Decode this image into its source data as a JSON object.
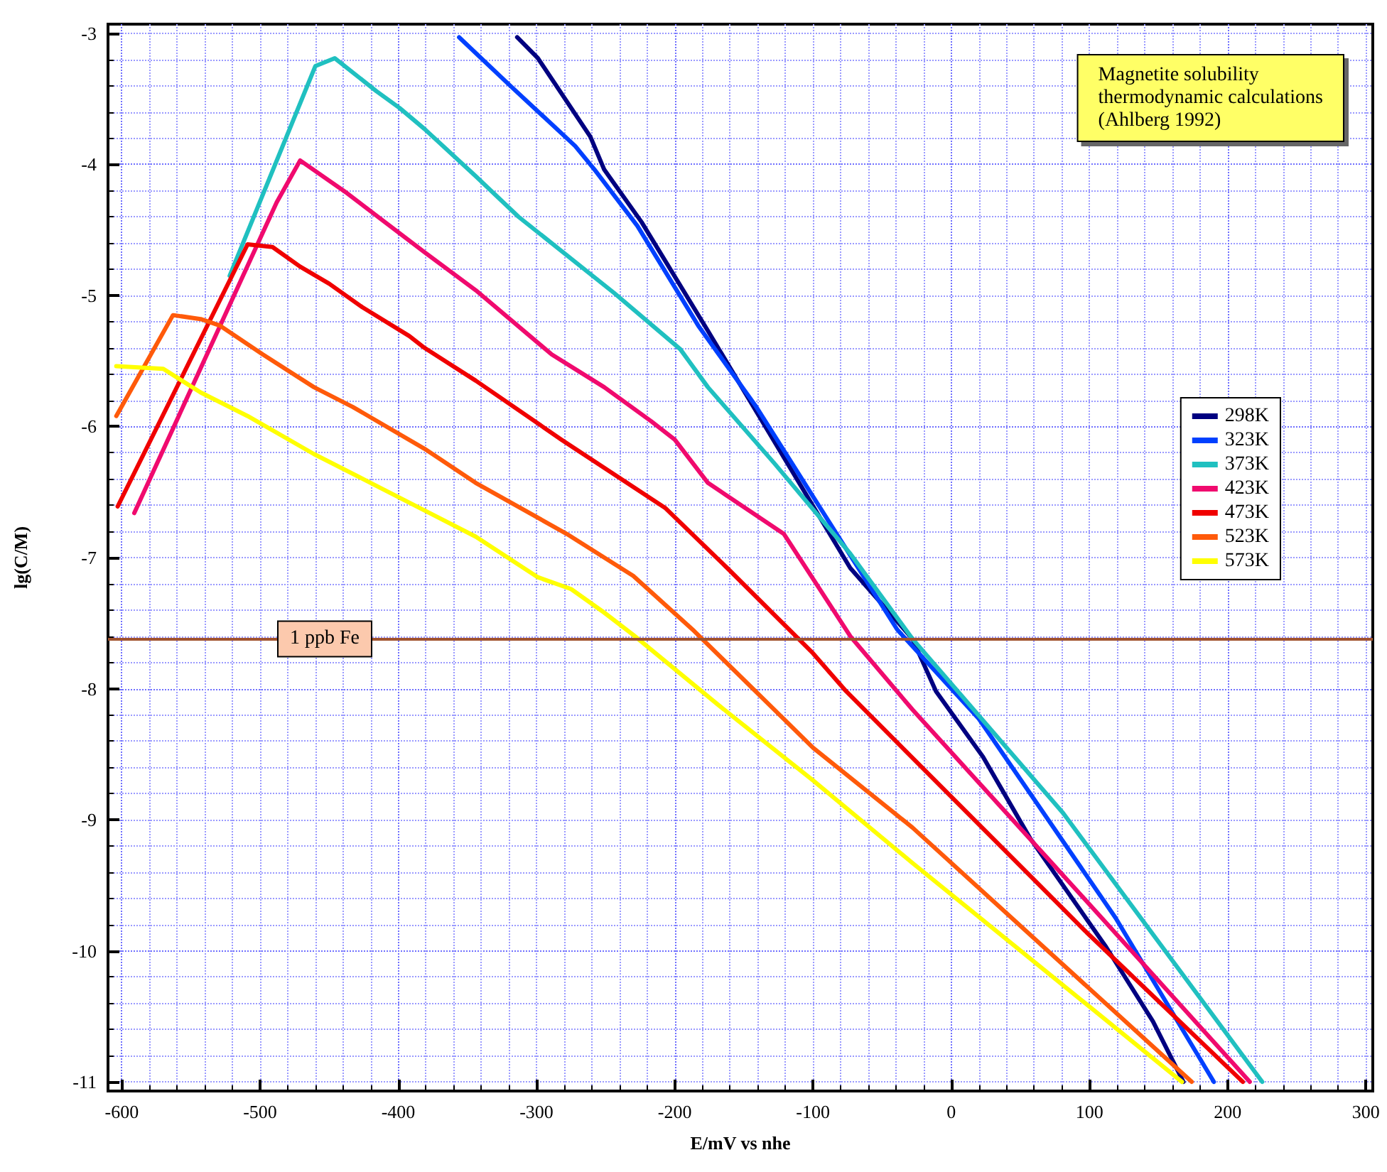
{
  "chart_data": {
    "type": "line",
    "xlabel": "E/mV vs nhe",
    "ylabel": "lg(C/M)",
    "xlim": [
      -610,
      305
    ],
    "ylim": [
      -11.07,
      -2.93
    ],
    "xticks": [
      -600,
      -500,
      -400,
      -300,
      -200,
      -100,
      0,
      100,
      200,
      300
    ],
    "yticks": [
      -11,
      -10,
      -9,
      -8,
      -7,
      -6,
      -5,
      -4,
      -3
    ],
    "grid": true,
    "legend": "right",
    "marker": "none",
    "line_style": "solid",
    "annotations": [
      "Magnetite solubility\nthermodynamic calculations\n(Ahlberg 1992)"
    ],
    "ref_lines": [
      {
        "axis": "y",
        "value": -7.62,
        "label": "1 ppb Fe",
        "color": "#a0522d"
      }
    ],
    "series": [
      {
        "name": "298K",
        "color": "#000080",
        "x": [
          -314,
          -299,
          -261,
          -251,
          -224,
          -176,
          -73,
          -28,
          -11,
          23,
          57,
          112,
          146,
          168
        ],
        "values": [
          -3.03,
          -3.19,
          -3.79,
          -4.04,
          -4.44,
          -5.27,
          -7.08,
          -7.62,
          -8.02,
          -8.52,
          -9.14,
          -9.97,
          -10.54,
          -11
        ]
      },
      {
        "name": "323K",
        "color": "#0040ff",
        "x": [
          -356,
          -320,
          -272,
          -258,
          -227,
          -183,
          -141,
          -39,
          20,
          119,
          190
        ],
        "values": [
          -3.03,
          -3.39,
          -3.86,
          -4.04,
          -4.47,
          -5.23,
          -5.85,
          -7.55,
          -8.23,
          -9.75,
          -11
        ]
      },
      {
        "name": "373K",
        "color": "#20c0c0",
        "x": [
          -522,
          -460,
          -446,
          -416,
          -399,
          -381,
          -344,
          -313,
          -244,
          -196,
          -176,
          -128,
          -73,
          -28,
          81,
          225
        ],
        "values": [
          -4.85,
          -3.25,
          -3.19,
          -3.44,
          -3.57,
          -3.73,
          -4.09,
          -4.4,
          -4.98,
          -5.41,
          -5.7,
          -6.28,
          -6.97,
          -7.62,
          -8.95,
          -11
        ]
      },
      {
        "name": "423K",
        "color": "#f00a6e",
        "x": [
          -591,
          -488,
          -471,
          -437,
          -406,
          -381,
          -344,
          -289,
          -251,
          -217,
          -200,
          -176,
          -121,
          -73,
          -28,
          109,
          216
        ],
        "values": [
          -6.66,
          -4.29,
          -3.97,
          -4.22,
          -4.47,
          -4.67,
          -4.96,
          -5.45,
          -5.7,
          -5.96,
          -6.1,
          -6.43,
          -6.82,
          -7.6,
          -8.16,
          -9.75,
          -11
        ]
      },
      {
        "name": "473K",
        "color": "#f00000",
        "x": [
          -603,
          -509,
          -491,
          -471,
          -450,
          -426,
          -392,
          -381,
          -344,
          -282,
          -207,
          -162,
          -100,
          -76,
          98,
          211
        ],
        "values": [
          -6.61,
          -4.61,
          -4.63,
          -4.78,
          -4.91,
          -5.09,
          -5.31,
          -5.4,
          -5.65,
          -6.1,
          -6.62,
          -7.08,
          -7.73,
          -8.02,
          -9.86,
          -11
        ]
      },
      {
        "name": "523K",
        "color": "#ff5a0a",
        "x": [
          -604,
          -563,
          -543,
          -529,
          -498,
          -461,
          -433,
          -381,
          -344,
          -278,
          -230,
          -186,
          -100,
          -28,
          174
        ],
        "values": [
          -5.92,
          -5.15,
          -5.18,
          -5.23,
          -5.45,
          -5.7,
          -5.85,
          -6.17,
          -6.43,
          -6.82,
          -7.14,
          -7.56,
          -8.45,
          -9.06,
          -11
        ]
      },
      {
        "name": "573K",
        "color": "#ffff00",
        "x": [
          -604,
          -570,
          -543,
          -509,
          -461,
          -420,
          -381,
          -344,
          -299,
          -275,
          -251,
          -230,
          -169,
          -100,
          -28,
          167
        ],
        "values": [
          -5.54,
          -5.56,
          -5.74,
          -5.92,
          -6.21,
          -6.43,
          -6.64,
          -6.84,
          -7.15,
          -7.24,
          -7.42,
          -7.59,
          -8.12,
          -8.7,
          -9.33,
          -11
        ]
      }
    ]
  }
}
